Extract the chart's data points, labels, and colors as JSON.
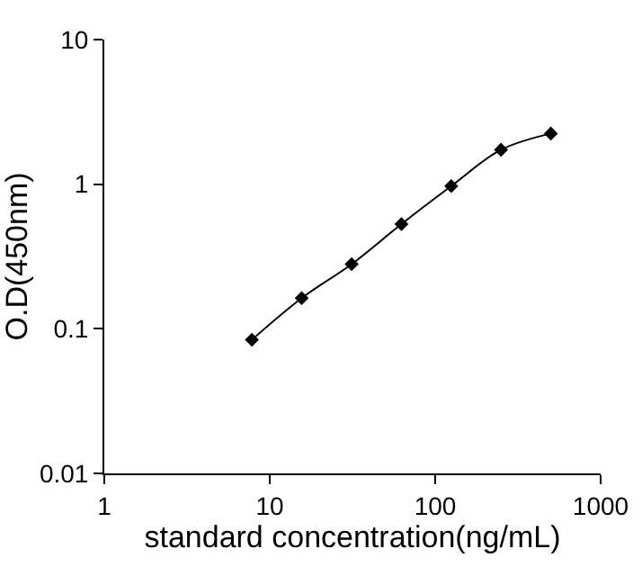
{
  "chart_data": {
    "type": "line",
    "xlabel": "standard concentration(ng/mL)",
    "ylabel": "O.D(450nm)",
    "log": "xy",
    "xlim": [
      1,
      1000
    ],
    "xticks": [
      1,
      10,
      100,
      1000
    ],
    "ylim": [
      0.01,
      10
    ],
    "yticks": [
      0.01,
      0.1,
      1,
      10
    ],
    "x": [
      7.8,
      15.6,
      31.25,
      62.5,
      125,
      250,
      500
    ],
    "series": [
      {
        "color": "#000000",
        "values": [
          0.084,
          0.163,
          0.28,
          0.53,
          0.97,
          1.73,
          2.24
        ]
      }
    ],
    "marker": "diamond",
    "line_style": "solid",
    "grid": false,
    "legend": false
  }
}
